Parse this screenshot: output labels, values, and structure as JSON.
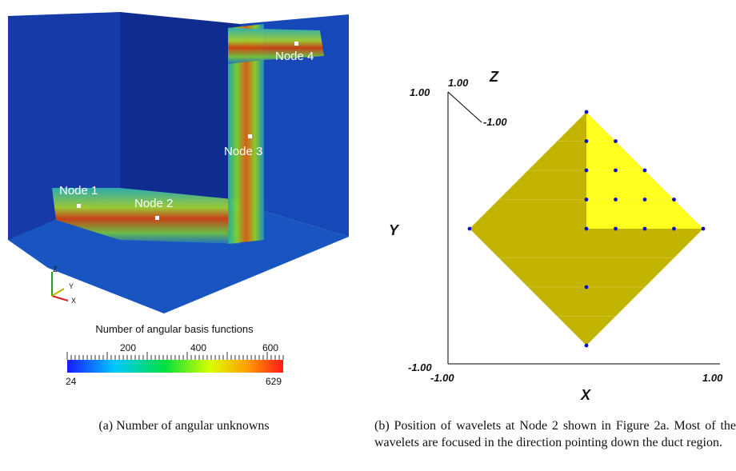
{
  "panel_a": {
    "nodes": [
      {
        "label": "Node 1"
      },
      {
        "label": "Node 2"
      },
      {
        "label": "Node 3"
      },
      {
        "label": "Node 4"
      }
    ],
    "triad": {
      "z": "Z",
      "y": "Y",
      "x": "X"
    },
    "colorbar": {
      "title": "Number of angular basis functions",
      "ticks": [
        "200",
        "400",
        "600"
      ],
      "min_label": "24",
      "max_label": "629",
      "colors": [
        "#1a1aff",
        "#00c8ff",
        "#00e040",
        "#d8ff00",
        "#ffa000",
        "#ff1a1a"
      ]
    },
    "caption": "(a) Number of angular unknowns"
  },
  "panel_b": {
    "labels": {
      "y_top": "1.00",
      "z_top": "1.00",
      "z_letter": "Z",
      "z_neg": "-1.00",
      "y_letter": "Y",
      "y_bottom": "-1.00",
      "x_left": "-1.00",
      "x_right": "1.00",
      "x_letter": "X"
    },
    "colors": {
      "face_dark": "#c2b400",
      "face_light": "#ffff1e",
      "wavelet": "#1010c8"
    },
    "caption": "(b) Position of wavelets at Node 2 shown in Figure 2a. Most of the wavelets are focused in the direction pointing down the duct region."
  }
}
